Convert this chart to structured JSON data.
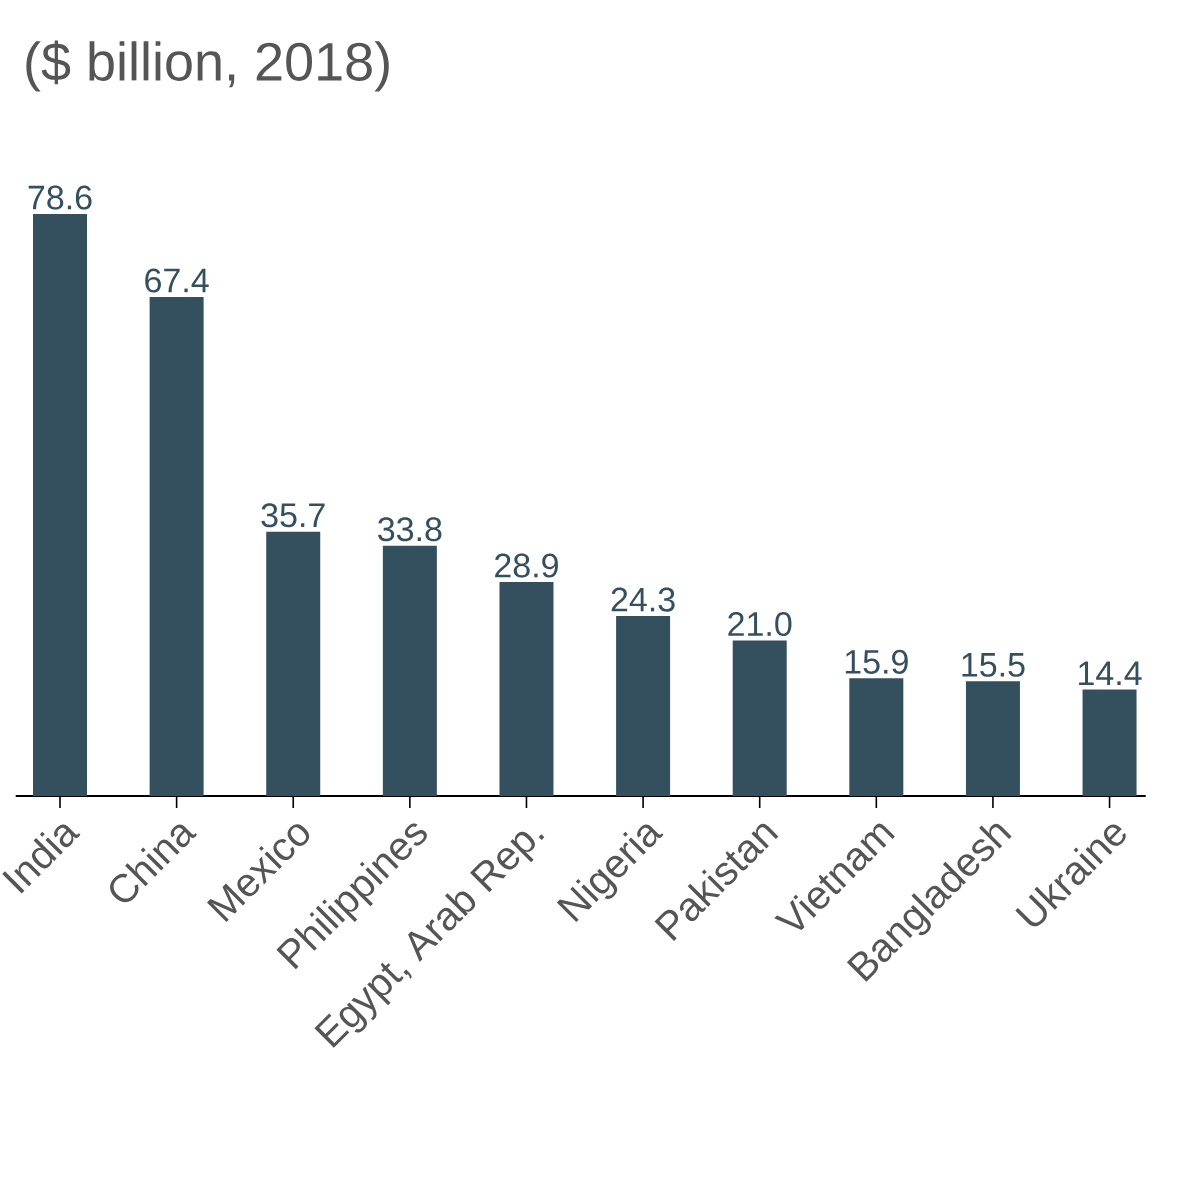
{
  "chart_data": {
    "type": "bar",
    "title": "($ billion, 2018)",
    "categories": [
      "India",
      "China",
      "Mexico",
      "Philippines",
      "Egypt, Arab Rep.",
      "Nigeria",
      "Pakistan",
      "Vietnam",
      "Bangladesh",
      "Ukraine"
    ],
    "values": [
      78.6,
      67.4,
      35.7,
      33.8,
      28.9,
      24.3,
      21.0,
      15.9,
      15.5,
      14.4
    ],
    "value_labels": [
      "78.6",
      "67.4",
      "35.7",
      "33.8",
      "28.9",
      "24.3",
      "21.0",
      "15.9",
      "15.5",
      "14.4"
    ],
    "color": "#34505f"
  }
}
